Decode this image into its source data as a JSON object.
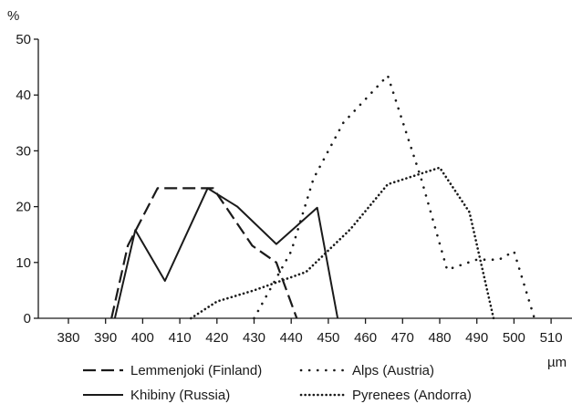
{
  "chart_data": {
    "type": "line",
    "ylabel": "%",
    "xlabel": "µm",
    "xlim": [
      373,
      513
    ],
    "ylim": [
      0,
      50
    ],
    "xticks": [
      380,
      390,
      400,
      410,
      420,
      430,
      440,
      450,
      460,
      470,
      480,
      490,
      500,
      510
    ],
    "yticks": [
      0,
      10,
      20,
      30,
      40,
      50
    ],
    "grid": false,
    "legend_position": "bottom",
    "series": [
      {
        "name": "Lemmenjoki (Finland)",
        "style": "dashed",
        "points": [
          [
            391.6,
            0
          ],
          [
            396,
            13
          ],
          [
            404,
            23.3
          ],
          [
            419,
            23.3
          ],
          [
            429.5,
            13
          ],
          [
            436,
            10
          ],
          [
            441.5,
            0
          ]
        ]
      },
      {
        "name": "Khibiny (Russia)",
        "style": "solid",
        "points": [
          [
            392.5,
            0
          ],
          [
            398,
            15.8
          ],
          [
            406,
            6.7
          ],
          [
            417.5,
            23.3
          ],
          [
            425.5,
            20
          ],
          [
            436,
            13.3
          ],
          [
            447,
            19.8
          ],
          [
            452.5,
            0
          ]
        ]
      },
      {
        "name": "Alps (Austria)",
        "style": "dotted",
        "points": [
          [
            430,
            0
          ],
          [
            440,
            12
          ],
          [
            446,
            25
          ],
          [
            454,
            35
          ],
          [
            466,
            43.5
          ],
          [
            475,
            25
          ],
          [
            482,
            8.7
          ],
          [
            490,
            10.5
          ],
          [
            496,
            10.5
          ],
          [
            500,
            12
          ],
          [
            505.5,
            0
          ]
        ]
      },
      {
        "name": "Pyrenees (Andorra)",
        "style": "dense-dotted",
        "points": [
          [
            413,
            0
          ],
          [
            420,
            3
          ],
          [
            430,
            5
          ],
          [
            444,
            8.3
          ],
          [
            456,
            16
          ],
          [
            466,
            24
          ],
          [
            480,
            27
          ],
          [
            488,
            19
          ],
          [
            494.5,
            0
          ]
        ]
      }
    ]
  }
}
